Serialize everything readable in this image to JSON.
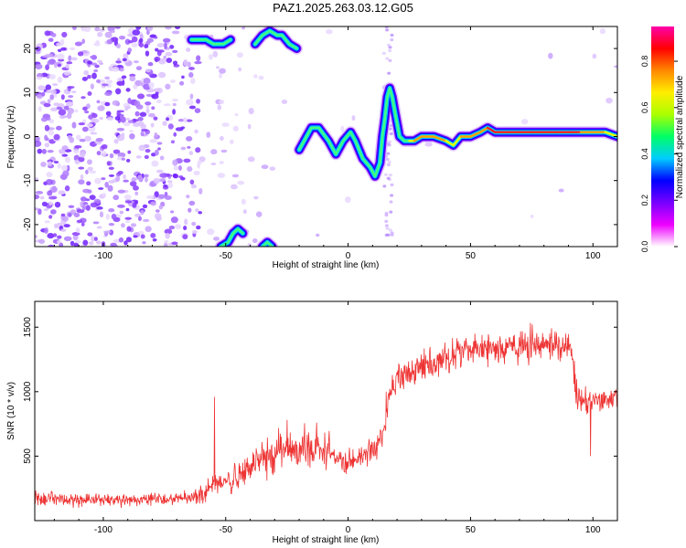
{
  "title": "PAZ1.2025.263.03.12.G05",
  "chart_data": [
    {
      "type": "heatmap",
      "xlabel": "Height of straight line (km)",
      "ylabel": "Frequency (Hz)",
      "xlim": [
        -128,
        110
      ],
      "ylim": [
        -25,
        25
      ],
      "xticks": [
        -100,
        -50,
        0,
        50,
        100
      ],
      "yticks": [
        -20,
        -10,
        0,
        10,
        20
      ],
      "colorbar": {
        "label": "Normalized spectral amplitude",
        "range": [
          0,
          0.95
        ],
        "ticks": [
          0,
          0.2,
          0.4,
          0.6,
          0.8
        ],
        "colormap": [
          "#ffffff",
          "#ee00ff",
          "#7700ff",
          "#0000ff",
          "#00ccff",
          "#00ff66",
          "#aaff00",
          "#ffee00",
          "#ff8800",
          "#ff0000",
          "#ff00aa"
        ]
      },
      "ridge": {
        "x": [
          -20,
          -17,
          -15,
          -12,
          -8,
          -5,
          -2,
          1,
          3,
          6,
          9,
          11,
          13,
          14,
          15,
          16,
          17,
          18,
          19,
          20,
          21,
          23,
          25,
          27,
          30,
          35,
          40,
          43,
          46,
          50,
          54,
          57,
          60,
          65,
          70,
          75,
          80,
          85,
          90,
          95,
          100,
          105,
          110
        ],
        "y": [
          -3,
          0,
          2,
          2,
          -1,
          -4,
          -1,
          1,
          -1,
          -5,
          -7,
          -9,
          -6,
          0,
          4,
          9,
          11,
          9,
          6,
          3,
          0,
          -1,
          -1,
          -1,
          0,
          0,
          -1,
          -2,
          0,
          0,
          1,
          2,
          1,
          1,
          1,
          1,
          1,
          1,
          1,
          1,
          1,
          1,
          0
        ]
      },
      "ridge_amplitude": [
        0.3,
        0.35,
        0.4,
        0.4,
        0.35,
        0.35,
        0.4,
        0.4,
        0.35,
        0.4,
        0.35,
        0.4,
        0.3,
        0.3,
        0.3,
        0.35,
        0.4,
        0.35,
        0.3,
        0.3,
        0.3,
        0.4,
        0.6,
        0.75,
        0.7,
        0.75,
        0.7,
        0.6,
        0.7,
        0.75,
        0.8,
        0.8,
        0.85,
        0.85,
        0.9,
        0.9,
        0.9,
        0.85,
        0.85,
        0.8,
        0.8,
        0.7,
        0.5
      ],
      "upper_fragments": [
        {
          "x": [
            -64,
            -58,
            -55,
            -51,
            -48
          ],
          "y": [
            22,
            22,
            21,
            21,
            22
          ]
        },
        {
          "x": [
            -38,
            -35,
            -32,
            -29,
            -27,
            -24,
            -21
          ],
          "y": [
            21,
            23,
            24,
            23,
            23,
            21,
            20
          ]
        }
      ],
      "lower_fragments": [
        {
          "x": [
            -52,
            -49,
            -47,
            -45,
            -43
          ],
          "y": [
            -25,
            -24,
            -22,
            -21,
            -22
          ]
        },
        {
          "x": [
            -35,
            -33,
            -31
          ],
          "y": [
            -25,
            -24,
            -25
          ]
        }
      ]
    },
    {
      "type": "line",
      "xlabel": "Height of straight line (km)",
      "ylabel": "SNR (10 * v/v)",
      "xlim": [
        -128,
        110
      ],
      "ylim": [
        0,
        1700
      ],
      "xticks": [
        -100,
        -50,
        0,
        50,
        100
      ],
      "yticks": [
        500,
        1000,
        1500
      ],
      "line_color": "#ee3333",
      "envelope_x": [
        -128,
        -110,
        -90,
        -70,
        -60,
        -55,
        -50,
        -45,
        -40,
        -30,
        -20,
        -10,
        -5,
        0,
        5,
        10,
        15,
        17,
        20,
        30,
        40,
        50,
        60,
        70,
        80,
        91,
        93,
        95,
        100,
        110
      ],
      "envelope_y": [
        170,
        160,
        160,
        170,
        190,
        280,
        310,
        330,
        410,
        520,
        570,
        560,
        490,
        450,
        500,
        560,
        700,
        1000,
        1090,
        1180,
        1270,
        1330,
        1330,
        1340,
        1350,
        1350,
        1000,
        920,
        930,
        950
      ],
      "noise_std": [
        40,
        40,
        40,
        40,
        45,
        60,
        70,
        80,
        90,
        110,
        120,
        110,
        80,
        70,
        70,
        80,
        90,
        90,
        90,
        90,
        95,
        95,
        95,
        95,
        95,
        90,
        80,
        75,
        70,
        70
      ],
      "spikes": [
        {
          "x": -54.6,
          "y": 960
        },
        {
          "x": 99,
          "y": 500
        }
      ]
    }
  ]
}
